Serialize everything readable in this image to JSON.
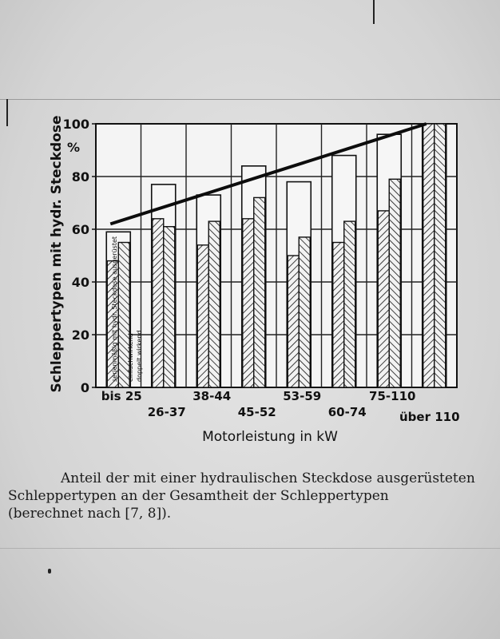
{
  "chart_data": {
    "type": "bar",
    "ylabel": "Schleppertypen mit hydr. Steckdose",
    "yunit": "%",
    "xlabel": "Motorleistung in kW",
    "ylim": [
      0,
      100
    ],
    "yticks": [
      0,
      20,
      40,
      60,
      80,
      100
    ],
    "grid": true,
    "categories": [
      "bis 25",
      "26-37",
      "38-44",
      "45-52",
      "53-59",
      "60-74",
      "75-110",
      "über 110"
    ],
    "series": [
      {
        "name": "serienmäßig mit hydr. Steckdose ausgerüstet",
        "values": [
          59,
          77,
          73,
          84,
          78,
          88,
          96,
          100
        ]
      },
      {
        "name": "einfachwirkend",
        "values": [
          48,
          64,
          54,
          64,
          50,
          55,
          67,
          100
        ]
      },
      {
        "name": "doppelt wirkend",
        "values": [
          55,
          61,
          63,
          72,
          57,
          63,
          79,
          100
        ]
      }
    ],
    "trend_line": {
      "x_start": "bis 25",
      "y_start": 62,
      "x_end": "über 110",
      "y_end": 100
    }
  },
  "caption": {
    "line1": "Anteil der mit einer hydraulischen Steckdose ausgerüsteten",
    "line2": "Schleppertypen an der Gesamtheit der Schleppertypen",
    "line3": "(berechnet nach [7, 8])."
  }
}
